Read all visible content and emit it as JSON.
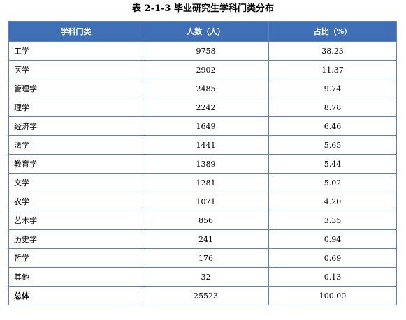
{
  "caption": "表 2-1-3  毕业研究生学科门类分布",
  "headers": [
    "学科门类",
    "人数（人）",
    "占比（%）"
  ],
  "rows": [
    {
      "category": "工学",
      "count": "9758",
      "percent": "38.23"
    },
    {
      "category": "医学",
      "count": "2902",
      "percent": "11.37"
    },
    {
      "category": "管理学",
      "count": "2485",
      "percent": "9.74"
    },
    {
      "category": "理学",
      "count": "2242",
      "percent": "8.78"
    },
    {
      "category": "经济学",
      "count": "1649",
      "percent": "6.46"
    },
    {
      "category": "法学",
      "count": "1441",
      "percent": "5.65"
    },
    {
      "category": "教育学",
      "count": "1389",
      "percent": "5.44"
    },
    {
      "category": "文学",
      "count": "1281",
      "percent": "5.02"
    },
    {
      "category": "农学",
      "count": "1071",
      "percent": "4.20"
    },
    {
      "category": "艺术学",
      "count": "856",
      "percent": "3.35"
    },
    {
      "category": "历史学",
      "count": "241",
      "percent": "0.94"
    },
    {
      "category": "哲学",
      "count": "176",
      "percent": "0.69"
    },
    {
      "category": "其他",
      "count": "32",
      "percent": "0.13"
    }
  ],
  "total": {
    "category": "总体",
    "count": "25523",
    "percent": "100.00"
  },
  "colors": {
    "header_bg": "#3f6fb4",
    "header_text": "#ffffff",
    "border": "#5b7fb6"
  }
}
